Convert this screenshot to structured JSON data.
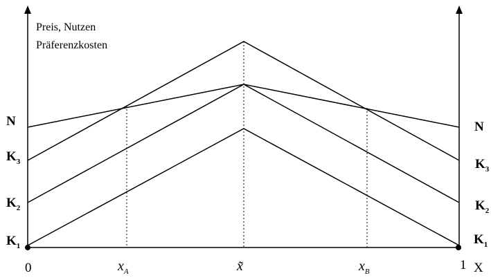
{
  "diagram": {
    "y_axis_title_line1": "Preis, Nutzen",
    "y_axis_title_line2": "Präferenzkosten",
    "left_labels": {
      "N": "N",
      "K3": "K",
      "K3_sub": "3",
      "K2": "K",
      "K2_sub": "2",
      "K1": "K",
      "K1_sub": "1"
    },
    "right_labels": {
      "N": "N",
      "K3": "K",
      "K3_sub": "3",
      "K2": "K",
      "K2_sub": "2",
      "K1": "K",
      "K1_sub": "1"
    },
    "x_labels": {
      "zero": "0",
      "xA": "x",
      "xA_sub": "A",
      "xtilde": "x̃",
      "xB": "x",
      "xB_sub": "B",
      "one": "1",
      "axis": "X"
    }
  }
}
